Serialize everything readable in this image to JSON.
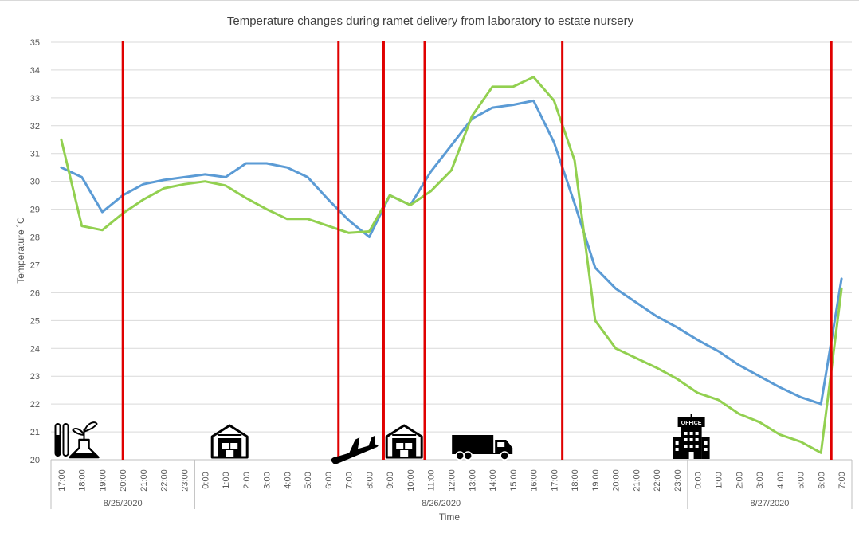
{
  "chart_data": {
    "type": "line",
    "title": "Temperature changes during ramet delivery from laboratory to estate nursery",
    "xlabel": "Time",
    "ylabel": "Temperature ˚C",
    "ylim": [
      20,
      35
    ],
    "yticks": [
      20,
      21,
      22,
      23,
      24,
      25,
      26,
      27,
      28,
      29,
      30,
      31,
      32,
      33,
      34,
      35
    ],
    "grid": true,
    "legend": "none",
    "categories": [
      "17:00",
      "18:00",
      "19:00",
      "20:00",
      "21:00",
      "22:00",
      "23:00",
      "0:00",
      "1:00",
      "2:00",
      "3:00",
      "4:00",
      "5:00",
      "6:00",
      "7:00",
      "8:00",
      "9:00",
      "10:00",
      "11:00",
      "12:00",
      "13:00",
      "14:00",
      "15:00",
      "16:00",
      "17:00",
      "18:00",
      "19:00",
      "20:00",
      "21:00",
      "22:00",
      "23:00",
      "0:00",
      "1:00",
      "2:00",
      "3:00",
      "4:00",
      "5:00",
      "6:00",
      "7:00"
    ],
    "date_groups": [
      {
        "label": "8/25/2020",
        "start": 0,
        "end": 6
      },
      {
        "label": "8/26/2020",
        "start": 7,
        "end": 30
      },
      {
        "label": "8/27/2020",
        "start": 31,
        "end": 38
      }
    ],
    "series": [
      {
        "color": "#5b9bd5",
        "values": [
          30.5,
          30.15,
          28.9,
          29.5,
          29.9,
          30.05,
          30.15,
          30.25,
          30.15,
          30.65,
          30.65,
          30.5,
          30.15,
          29.35,
          28.6,
          28.0,
          29.5,
          29.15,
          30.35,
          31.3,
          32.25,
          32.65,
          32.75,
          32.9,
          31.4,
          29.2,
          26.9,
          26.15,
          25.65,
          25.15,
          24.75,
          24.3,
          23.9,
          23.4,
          23.0,
          22.6,
          22.25,
          22.0,
          26.5
        ]
      },
      {
        "color": "#92d050",
        "values": [
          31.5,
          28.4,
          28.25,
          28.85,
          29.35,
          29.75,
          29.9,
          30.0,
          29.85,
          29.4,
          29.0,
          28.65,
          28.65,
          28.4,
          28.15,
          28.2,
          29.5,
          29.15,
          29.65,
          30.4,
          32.35,
          33.4,
          33.4,
          33.75,
          32.9,
          30.75,
          25.0,
          24.0,
          23.65,
          23.3,
          22.9,
          22.4,
          22.15,
          21.65,
          21.35,
          20.9,
          20.65,
          20.25,
          26.15
        ]
      }
    ],
    "annotation_lines": {
      "color": "#e00000",
      "x_positions": [
        3,
        13.5,
        15.7,
        17.7,
        24.4,
        37.5
      ]
    },
    "annotation_icons": [
      {
        "icon": "laboratory-icon",
        "x": 0.8
      },
      {
        "icon": "warehouse-icon",
        "x": 8.2
      },
      {
        "icon": "airplane-icon",
        "x": 14.5
      },
      {
        "icon": "warehouse-icon",
        "x": 16.7
      },
      {
        "icon": "truck-icon",
        "x": 20.5
      },
      {
        "icon": "office-building-icon",
        "x": 30.8,
        "label": "OFFICE"
      }
    ]
  }
}
